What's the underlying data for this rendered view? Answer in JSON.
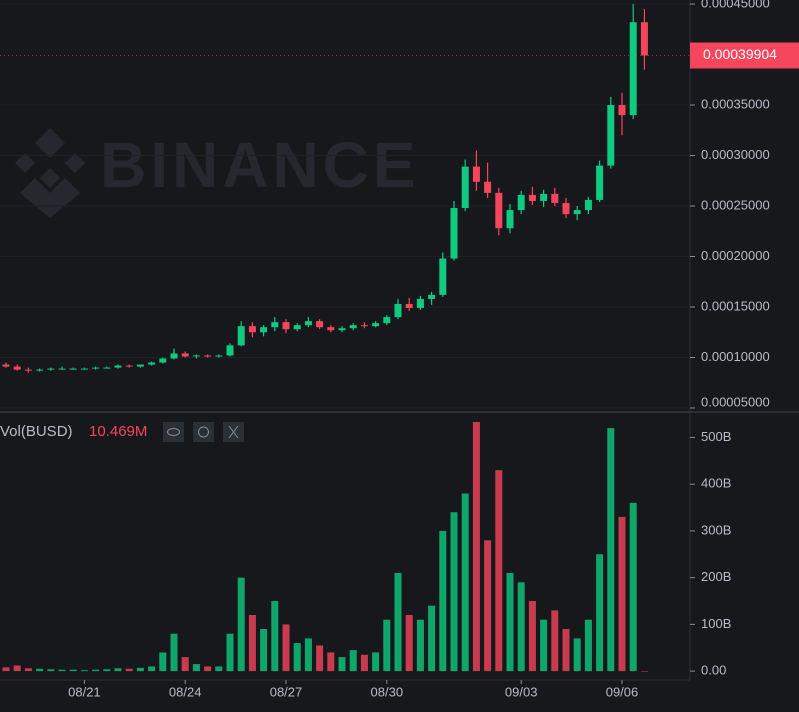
{
  "chart_data": {
    "type": "candlestick",
    "watermark": "BINANCE",
    "up_color": "#0ecb81",
    "down_color": "#f6465d",
    "categories": [
      null,
      null,
      null,
      null,
      null,
      null,
      null,
      "08/21",
      null,
      null,
      null,
      null,
      null,
      null,
      null,
      null,
      "08/24",
      null,
      null,
      null,
      null,
      null,
      null,
      null,
      null,
      "08/27",
      null,
      null,
      null,
      null,
      null,
      null,
      null,
      null,
      "08/30",
      null,
      null,
      null,
      null,
      null,
      null,
      null,
      null,
      null,
      null,
      null,
      "09/03",
      null,
      null,
      null,
      null,
      null,
      null,
      null,
      null,
      "09/06",
      null,
      null
    ],
    "open": [
      9.3e-05,
      9.1e-05,
      8.8e-05,
      8.7e-05,
      8.8e-05,
      8.9e-05,
      8.9e-05,
      8.9e-05,
      8.9e-05,
      9e-05,
      9e-05,
      9.2e-05,
      9.1e-05,
      9.3e-05,
      9.5e-05,
      9.9e-05,
      0.000104,
      0.000101,
      0.000102,
      0.000101,
      0.000102,
      0.000112,
      0.000131,
      0.000125,
      0.00013,
      0.000135,
      0.000128,
      0.000132,
      0.000136,
      0.00013,
      0.000127,
      0.000129,
      0.000132,
      0.000131,
      0.000134,
      0.00014,
      0.000153,
      0.000149,
      0.000158,
      0.000162,
      0.000198,
      0.000248,
      0.000289,
      0.000274,
      0.000263,
      0.000228,
      0.000246,
      0.000261,
      0.000255,
      0.000262,
      0.000253,
      0.000242,
      0.000246,
      0.000256,
      0.00029,
      0.00035,
      0.00034,
      0.000432
    ],
    "high": [
      9.5e-05,
      9.3e-05,
      9e-05,
      8.9e-05,
      9e-05,
      9.1e-05,
      9e-05,
      9e-05,
      9.1e-05,
      9.1e-05,
      9.3e-05,
      9.3e-05,
      9.3e-05,
      9.6e-05,
      0.0001,
      0.000109,
      0.000106,
      0.000103,
      0.000103,
      0.000103,
      0.000114,
      0.000136,
      0.000135,
      0.000132,
      0.00014,
      0.000138,
      0.000134,
      0.00014,
      0.000138,
      0.000132,
      0.000131,
      0.000134,
      0.000135,
      0.000136,
      0.000142,
      0.000158,
      0.000159,
      0.000161,
      0.000165,
      0.000204,
      0.000255,
      0.000296,
      0.000305,
      0.000293,
      0.000268,
      0.000252,
      0.000265,
      0.000269,
      0.000266,
      0.000268,
      0.000258,
      0.00025,
      0.000259,
      0.000295,
      0.000358,
      0.000362,
      0.00045,
      0.000445
    ],
    "low": [
      9e-05,
      8.7e-05,
      8.5e-05,
      8.6e-05,
      8.7e-05,
      8.8e-05,
      8.8e-05,
      8.8e-05,
      8.8e-05,
      8.9e-05,
      8.9e-05,
      9e-05,
      9e-05,
      9.2e-05,
      9.4e-05,
      9.8e-05,
      0.0001,
      9.9e-05,
      0.0001,
      0.0001,
      0.000101,
      0.000111,
      0.00012,
      0.000121,
      0.000126,
      0.000124,
      0.000126,
      0.00013,
      0.000128,
      0.000125,
      0.000125,
      0.000127,
      0.000129,
      0.00013,
      0.000132,
      0.000138,
      0.000146,
      0.000147,
      0.000152,
      0.00016,
      0.000196,
      0.000245,
      0.000265,
      0.000258,
      0.000221,
      0.000223,
      0.000242,
      0.000251,
      0.000249,
      0.00025,
      0.000238,
      0.000236,
      0.000242,
      0.000254,
      0.000287,
      0.00032,
      0.000336,
      0.000385
    ],
    "close": [
      9.1e-05,
      8.8e-05,
      8.7e-05,
      8.8e-05,
      8.9e-05,
      8.9e-05,
      8.9e-05,
      8.9e-05,
      9e-05,
      9e-05,
      9.2e-05,
      9.1e-05,
      9.3e-05,
      9.5e-05,
      9.9e-05,
      0.000104,
      0.000101,
      0.000102,
      0.000101,
      0.000102,
      0.000112,
      0.000131,
      0.000125,
      0.00013,
      0.000135,
      0.000128,
      0.000132,
      0.000136,
      0.00013,
      0.000127,
      0.000129,
      0.000132,
      0.000131,
      0.000134,
      0.00014,
      0.000153,
      0.000149,
      0.000158,
      0.000162,
      0.000198,
      0.000248,
      0.000289,
      0.000274,
      0.000263,
      0.000228,
      0.000246,
      0.000261,
      0.000255,
      0.000262,
      0.000253,
      0.000242,
      0.000246,
      0.000256,
      0.00029,
      0.00035,
      0.00034,
      0.000432,
      0.00039904
    ],
    "ylim": [
      4.8e-05,
      0.000454
    ],
    "yticks": [
      {
        "value": 5e-05,
        "label": "0.00005000"
      },
      {
        "value": 0.0001,
        "label": "0.00010000"
      },
      {
        "value": 0.00015,
        "label": "0.00015000"
      },
      {
        "value": 0.0002,
        "label": "0.00020000"
      },
      {
        "value": 0.00025,
        "label": "0.00025000"
      },
      {
        "value": 0.0003,
        "label": "0.00030000"
      },
      {
        "value": 0.00035,
        "label": "0.00035000"
      },
      {
        "value": 0.00045,
        "label": "0.00045000"
      }
    ],
    "volume_label": "Vol(BUSD)",
    "volume_last_label": "10.469M",
    "volume": [
      8000000000.0,
      12000000000.0,
      6000000000.0,
      5000000000.0,
      4000000000.0,
      3000000000.0,
      3000000000.0,
      2000000000.0,
      3000000000.0,
      4000000000.0,
      6000000000.0,
      5000000000.0,
      7000000000.0,
      10000000000.0,
      40000000000.0,
      80000000000.0,
      30000000000.0,
      15000000000.0,
      10000000000.0,
      10000000000.0,
      80000000000.0,
      200000000000.0,
      120000000000.0,
      90000000000.0,
      150000000000.0,
      100000000000.0,
      60000000000.0,
      70000000000.0,
      55000000000.0,
      40000000000.0,
      30000000000.0,
      45000000000.0,
      35000000000.0,
      40000000000.0,
      110000000000.0,
      210000000000.0,
      120000000000.0,
      110000000000.0,
      140000000000.0,
      300000000000.0,
      340000000000.0,
      380000000000.0,
      533000000000.0,
      280000000000.0,
      430000000000.0,
      210000000000.0,
      190000000000.0,
      150000000000.0,
      110000000000.0,
      130000000000.0,
      90000000000.0,
      70000000000.0,
      110000000000.0,
      250000000000.0,
      520000000000.0,
      330000000000.0,
      360000000000.0,
      10469000
    ],
    "volume_ylim": [
      -19000000000.0,
      548000000000.0
    ],
    "volume_yticks": [
      {
        "value": 0,
        "label": "0.00"
      },
      {
        "value": 100000000000.0,
        "label": "100B"
      },
      {
        "value": 200000000000.0,
        "label": "200B"
      },
      {
        "value": 300000000000.0,
        "label": "300B"
      },
      {
        "value": 400000000000.0,
        "label": "400B"
      },
      {
        "value": 500000000000.0,
        "label": "500B"
      }
    ]
  }
}
